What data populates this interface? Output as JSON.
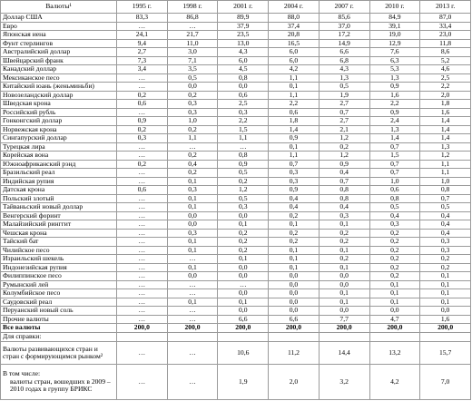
{
  "table": {
    "header": [
      "Валюты¹",
      "1995 г.",
      "1998 г.",
      "2001 г.",
      "2004 г.",
      "2007 г.",
      "2010 г.",
      "2013 г."
    ],
    "rows": [
      [
        "Доллар США",
        "83,3",
        "86,8",
        "89,9",
        "88,0",
        "85,6",
        "84,9",
        "87,0"
      ],
      [
        "Евро",
        "…",
        "…",
        "37,9",
        "37,4",
        "37,0",
        "39,1",
        "33,4"
      ],
      [
        "Японская иена",
        "24,1",
        "21,7",
        "23,5",
        "20,8",
        "17,2",
        "19,0",
        "23,0"
      ],
      [
        "Фунт стерлингов",
        "9,4",
        "11,0",
        "13,0",
        "16,5",
        "14,9",
        "12,9",
        "11,8"
      ],
      [
        "Австралийский доллар",
        "2,7",
        "3,0",
        "4,3",
        "6,0",
        "6,6",
        "7,6",
        "8,6"
      ],
      [
        "Швейцарский франк",
        "7,3",
        "7,1",
        "6,0",
        "6,0",
        "6,8",
        "6,3",
        "5,2"
      ],
      [
        "Канадский доллар",
        "3,4",
        "3,5",
        "4,5",
        "4,2",
        "4,3",
        "5,3",
        "4,6"
      ],
      [
        "Мексиканское песо",
        "…",
        "0,5",
        "0,8",
        "1,1",
        "1,3",
        "1,3",
        "2,5"
      ],
      [
        "Китайский юань (женьминьби)",
        "…",
        "0,0",
        "0,0",
        "0,1",
        "0,5",
        "0,9",
        "2,2"
      ],
      [
        "Новозеландский доллар",
        "0,2",
        "0,2",
        "0,6",
        "1,1",
        "1,9",
        "1,6",
        "2,0"
      ],
      [
        "Шведская крона",
        "0,6",
        "0,3",
        "2,5",
        "2,2",
        "2,7",
        "2,2",
        "1,8"
      ],
      [
        "Российский рубль",
        "…",
        "0,3",
        "0,3",
        "0,6",
        "0,7",
        "0,9",
        "1,6"
      ],
      [
        "Гонконгский доллар",
        "0,9",
        "1,0",
        "2,2",
        "1,8",
        "2,7",
        "2,4",
        "1,4"
      ],
      [
        "Норвежская крона",
        "0,2",
        "0,2",
        "1,5",
        "1,4",
        "2,1",
        "1,3",
        "1,4"
      ],
      [
        "Сингапурский доллар",
        "0,3",
        "1,1",
        "1,1",
        "0,9",
        "1,2",
        "1,4",
        "1,4"
      ],
      [
        "Турецкая лира",
        "…",
        "…",
        "…",
        "0,1",
        "0,2",
        "0,7",
        "1,3"
      ],
      [
        "Корейская вона",
        "…",
        "0,2",
        "0,8",
        "1,1",
        "1,2",
        "1,5",
        "1,2"
      ],
      [
        "Южноафриканский рэнд",
        "0,2",
        "0,4",
        "0,9",
        "0,7",
        "0,9",
        "0,7",
        "1,1"
      ],
      [
        "Бразильский реал",
        "…",
        "0,2",
        "0,5",
        "0,3",
        "0,4",
        "0,7",
        "1,1"
      ],
      [
        "Индийская рупия",
        "…",
        "0,1",
        "0,2",
        "0,3",
        "0,7",
        "1,0",
        "1,0"
      ],
      [
        "Датская крона",
        "0,6",
        "0,3",
        "1,2",
        "0,9",
        "0,8",
        "0,6",
        "0,8"
      ],
      [
        "Польский злотый",
        "…",
        "0,1",
        "0,5",
        "0,4",
        "0,8",
        "0,8",
        "0,7"
      ],
      [
        "Тайваньский новый доллар",
        "…",
        "0,1",
        "0,3",
        "0,4",
        "0,4",
        "0,5",
        "0,5"
      ],
      [
        "Венгерский форинт",
        "…",
        "0,0",
        "0,0",
        "0,2",
        "0,3",
        "0,4",
        "0,4"
      ],
      [
        "Малайзийский ринггит",
        "…",
        "0,0",
        "0,1",
        "0,1",
        "0,1",
        "0,3",
        "0,4"
      ],
      [
        "Чешская крона",
        "…",
        "0,3",
        "0,2",
        "0,2",
        "0,2",
        "0,2",
        "0,4"
      ],
      [
        "Тайский бат",
        "…",
        "0,1",
        "0,2",
        "0,2",
        "0,2",
        "0,2",
        "0,3"
      ],
      [
        "Чилийское песо",
        "…",
        "0,1",
        "0,2",
        "0,1",
        "0,1",
        "0,2",
        "0,3"
      ],
      [
        "Израильский шекель",
        "…",
        "…",
        "0,1",
        "0,1",
        "0,2",
        "0,2",
        "0,2"
      ],
      [
        "Индонезийская рупия",
        "…",
        "0,1",
        "0,0",
        "0,1",
        "0,1",
        "0,2",
        "0,2"
      ],
      [
        "Филиппинское песо",
        "…",
        "0,0",
        "0,0",
        "0,0",
        "0,0",
        "0,2",
        "0,1"
      ],
      [
        "Румынский лей",
        "…",
        "…",
        "…",
        "0,0",
        "0,0",
        "0,1",
        "0,1"
      ],
      [
        "Колумбийское песо",
        "…",
        "…",
        "0,0",
        "0,0",
        "0,1",
        "0,1",
        "0,1"
      ],
      [
        "Саудовский реал",
        "…",
        "0,1",
        "0,1",
        "0,0",
        "0,1",
        "0,1",
        "0,1"
      ],
      [
        "Перуанский новый соль",
        "…",
        "…",
        "0,0",
        "0,0",
        "0,0",
        "0,0",
        "0,0"
      ],
      [
        "Прочие валюты",
        "…",
        "…",
        "6,6",
        "6,6",
        "7,7",
        "4,7",
        "1,6"
      ]
    ],
    "total": [
      "Все валюты",
      "200,0",
      "200,0",
      "200,0",
      "200,0",
      "200,0",
      "200,0",
      "200,0"
    ],
    "reference": {
      "label": "Для справки:",
      "emerging": [
        "Валюты развивающихся стран и стран с формирующимся рынком²",
        "…",
        "…",
        "10,6",
        "11,2",
        "14,4",
        "13,2",
        "15,7"
      ],
      "brics_note": "В том числе:",
      "brics": [
        "валюты стран, вошедших в 2009 – 2010 годах в группу БРИКС",
        "…",
        "…",
        "1,9",
        "2,0",
        "3,2",
        "4,2",
        "7,0"
      ]
    }
  }
}
